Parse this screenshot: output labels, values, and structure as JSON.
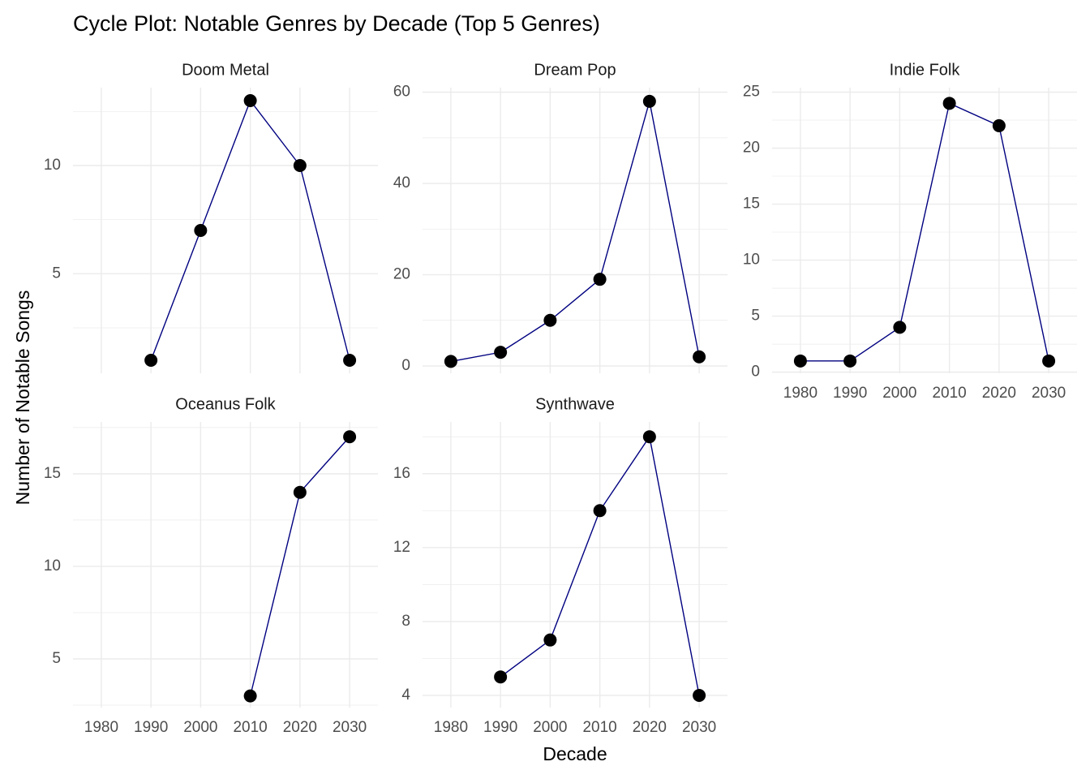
{
  "title": "Cycle Plot: Notable Genres by Decade (Top 5 Genres)",
  "x_label": "Decade",
  "y_label": "Number of Notable Songs",
  "chart_data": [
    {
      "type": "line",
      "title": "Doom Metal",
      "x": [
        1990,
        2000,
        2010,
        2020,
        2030
      ],
      "values": [
        1,
        7,
        13,
        10,
        1
      ],
      "line_color": "#000080",
      "point_color": "#000000",
      "xlim": [
        1974.3,
        2035.7
      ],
      "xticks": [
        1980,
        1990,
        2000,
        2010,
        2020,
        2030
      ],
      "ylim": [
        0.4,
        13.6
      ],
      "yticks": [
        5,
        10
      ],
      "y_minor_ticks": [
        2.5,
        7.5,
        12.5
      ],
      "grid": true
    },
    {
      "type": "line",
      "title": "Dream Pop",
      "x": [
        1980,
        1990,
        2000,
        2010,
        2020,
        2030
      ],
      "values": [
        1,
        3,
        10,
        19,
        58,
        2
      ],
      "line_color": "#000080",
      "point_color": "#000000",
      "xlim": [
        1974.3,
        2035.7
      ],
      "xticks": [
        1980,
        1990,
        2000,
        2010,
        2020,
        2030
      ],
      "ylim": [
        -1.6,
        61
      ],
      "yticks": [
        0,
        20,
        40,
        60
      ],
      "y_minor_ticks": [
        10,
        30,
        50
      ],
      "grid": true
    },
    {
      "type": "line",
      "title": "Indie Folk",
      "x": [
        1980,
        1990,
        2000,
        2010,
        2020,
        2030
      ],
      "values": [
        1,
        1,
        4,
        24,
        22,
        1
      ],
      "line_color": "#000080",
      "point_color": "#000000",
      "xlim": [
        1974.3,
        2035.7
      ],
      "xticks": [
        1980,
        1990,
        2000,
        2010,
        2020,
        2030
      ],
      "ylim": [
        -0.1,
        25.4
      ],
      "yticks": [
        0,
        5,
        10,
        15,
        20,
        25
      ],
      "y_minor_ticks": [
        2.5,
        7.5,
        12.5,
        17.5,
        22.5
      ],
      "grid": true
    },
    {
      "type": "line",
      "title": "Oceanus Folk",
      "x": [
        2010,
        2020,
        2030
      ],
      "values": [
        3,
        14,
        17
      ],
      "line_color": "#000080",
      "point_color": "#000000",
      "xlim": [
        1974.3,
        2035.7
      ],
      "xticks": [
        1980,
        1990,
        2000,
        2010,
        2020,
        2030
      ],
      "ylim": [
        2.37,
        17.8
      ],
      "yticks": [
        5,
        10,
        15
      ],
      "y_minor_ticks": [
        2.5,
        7.5,
        12.5,
        17.5
      ],
      "grid": true
    },
    {
      "type": "line",
      "title": "Synthwave",
      "x": [
        1990,
        2000,
        2010,
        2020,
        2030
      ],
      "values": [
        5,
        7,
        14,
        18,
        4
      ],
      "line_color": "#000080",
      "point_color": "#000000",
      "xlim": [
        1974.3,
        2035.7
      ],
      "xticks": [
        1980,
        1990,
        2000,
        2010,
        2020,
        2030
      ],
      "ylim": [
        3.34,
        18.8
      ],
      "yticks": [
        4,
        8,
        12,
        16
      ],
      "y_minor_ticks": [
        6,
        10,
        14,
        18
      ],
      "grid": true
    }
  ]
}
